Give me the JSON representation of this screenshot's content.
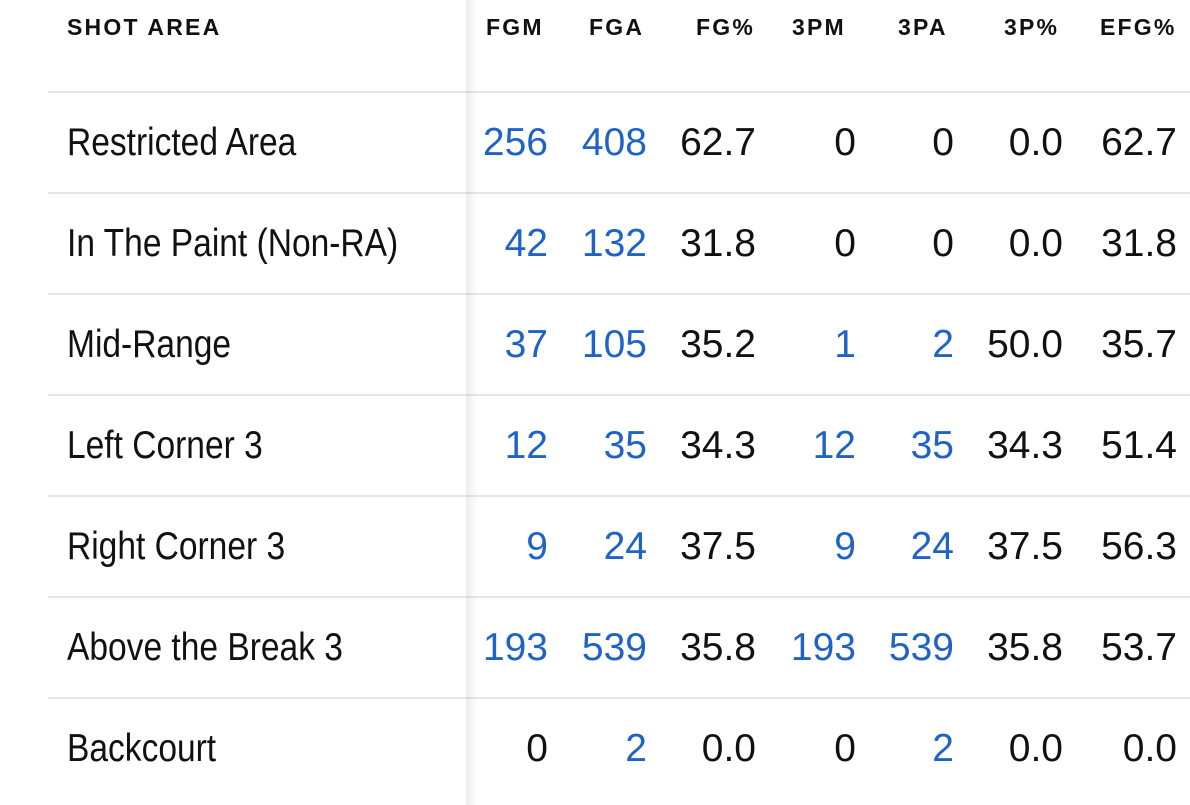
{
  "headers": {
    "shot_area": "SHOT AREA",
    "fgm": "FGM",
    "fga": "FGA",
    "fg_pct": "FG%",
    "tpm": "3PM",
    "tpa": "3PA",
    "tp_pct": "3P%",
    "efg_pct": "EFG%"
  },
  "rows": [
    {
      "area": "Restricted Area",
      "fgm": "256",
      "fga": "408",
      "fg_pct": "62.7",
      "tpm": "0",
      "tpa": "0",
      "tp_pct": "0.0",
      "efg_pct": "62.7"
    },
    {
      "area": "In The Paint (Non-RA)",
      "fgm": "42",
      "fga": "132",
      "fg_pct": "31.8",
      "tpm": "0",
      "tpa": "0",
      "tp_pct": "0.0",
      "efg_pct": "31.8"
    },
    {
      "area": "Mid-Range",
      "fgm": "37",
      "fga": "105",
      "fg_pct": "35.2",
      "tpm": "1",
      "tpa": "2",
      "tp_pct": "50.0",
      "efg_pct": "35.7"
    },
    {
      "area": "Left Corner 3",
      "fgm": "12",
      "fga": "35",
      "fg_pct": "34.3",
      "tpm": "12",
      "tpa": "35",
      "tp_pct": "34.3",
      "efg_pct": "51.4"
    },
    {
      "area": "Right Corner 3",
      "fgm": "9",
      "fga": "24",
      "fg_pct": "37.5",
      "tpm": "9",
      "tpa": "24",
      "tp_pct": "37.5",
      "efg_pct": "56.3"
    },
    {
      "area": "Above the Break 3",
      "fgm": "193",
      "fga": "539",
      "fg_pct": "35.8",
      "tpm": "193",
      "tpa": "539",
      "tp_pct": "35.8",
      "efg_pct": "53.7"
    },
    {
      "area": "Backcourt",
      "fgm": "0",
      "fga": "2",
      "fg_pct": "0.0",
      "tpm": "0",
      "tpa": "2",
      "tp_pct": "0.0",
      "efg_pct": "0.0"
    }
  ],
  "colors": {
    "link": "#1f63c9",
    "text": "#111111",
    "divider": "#e6e6e6"
  }
}
